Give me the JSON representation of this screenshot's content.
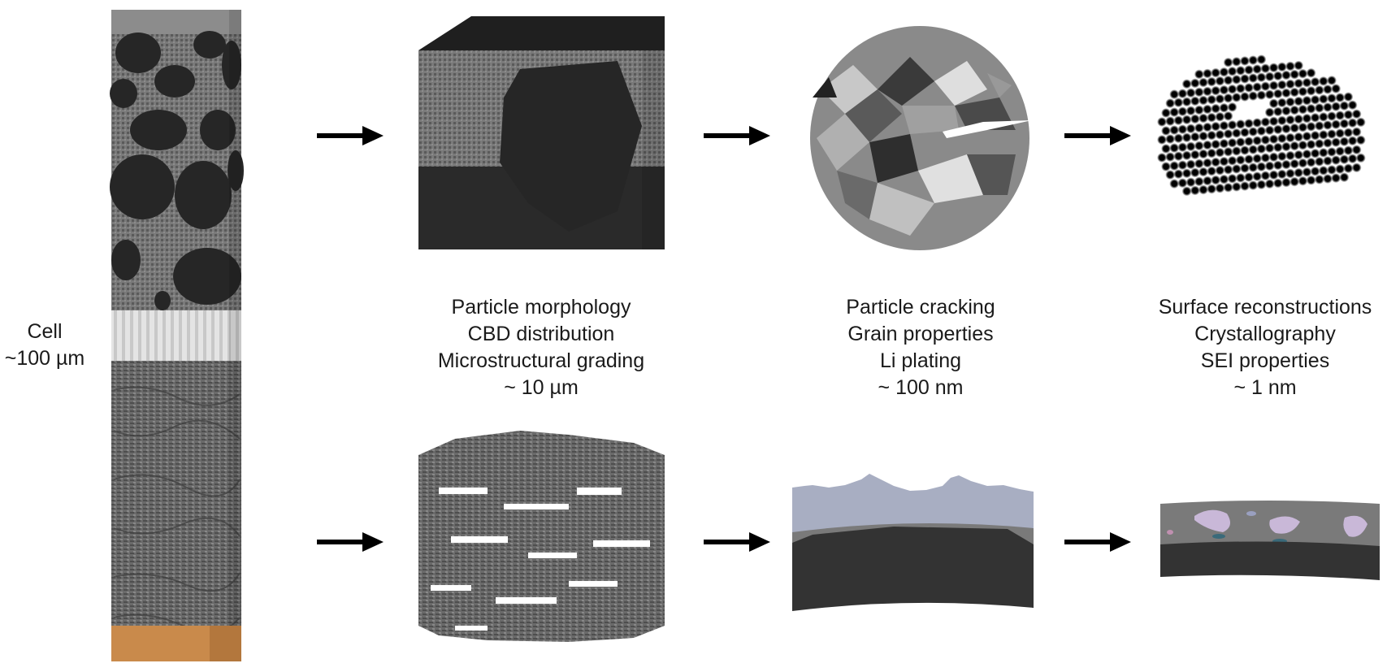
{
  "cell_label": {
    "line1": "Cell",
    "line2": "~100 µm"
  },
  "stage_labels": [
    {
      "lines": [
        "Particle morphology",
        "CBD distribution",
        "Microstructural grading",
        "~ 10 µm"
      ]
    },
    {
      "lines": [
        "Particle cracking",
        "Grain properties",
        "Li plating",
        "~ 100 nm"
      ]
    },
    {
      "lines": [
        "Surface reconstructions",
        "Crystallography",
        "SEI properties",
        "~ 1 nm"
      ]
    }
  ],
  "colors": {
    "particle_dark": "#262626",
    "matrix_gray": "#6b6b6b",
    "separator_light": "#d9d9d9",
    "anode_gray": "#555555",
    "current_collector": "#c98a4b",
    "li_deposit": "#a8aec2",
    "sei_layer": "#7a7a7a",
    "sei_inclusion": "#c9b8d8",
    "arrow": "#000000"
  },
  "icons": [
    "arrow-right-icon"
  ]
}
